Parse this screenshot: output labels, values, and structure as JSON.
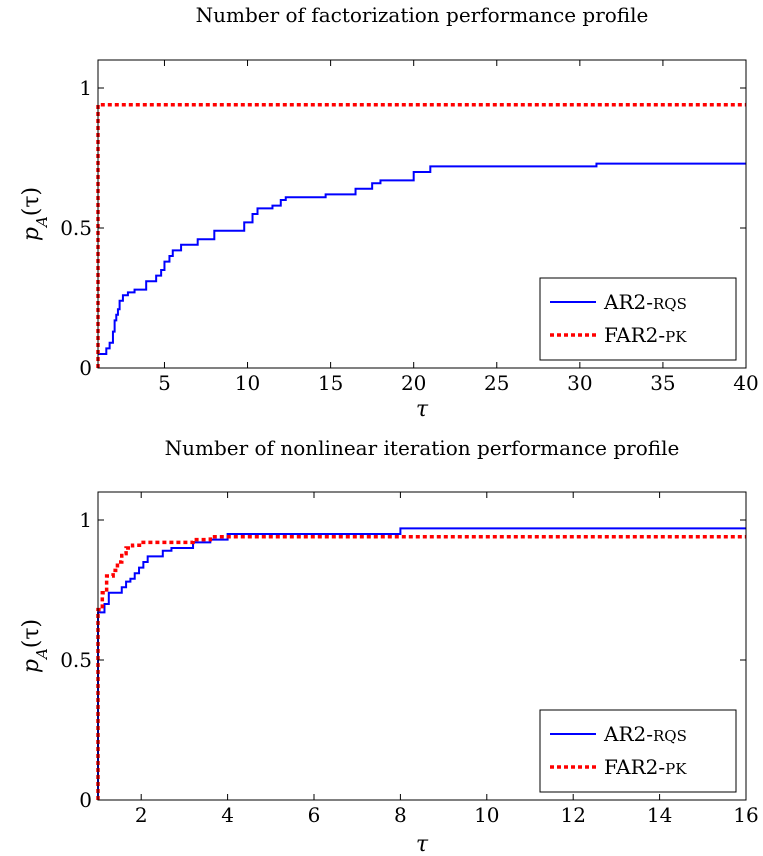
{
  "chart_data": [
    {
      "type": "line",
      "title": "Number of factorization performance profile",
      "xlabel": "τ",
      "ylabel": "p_A(τ)",
      "ylabel_main": "p",
      "ylabel_sub": "A",
      "ylabel_arg": "(τ)",
      "xlim": [
        1,
        40
      ],
      "ylim": [
        0,
        1.1
      ],
      "xticks": [
        5,
        10,
        15,
        20,
        25,
        30,
        35,
        40
      ],
      "xtick_labels": [
        "5",
        "10",
        "15",
        "20",
        "25",
        "30",
        "35",
        "40"
      ],
      "yticks": [
        0,
        0.5,
        1
      ],
      "ytick_labels": [
        "0",
        "0.5",
        "1"
      ],
      "grid": false,
      "legend_position": "bottom-right",
      "series": [
        {
          "name": "AR2-RQS",
          "name_main": "AR2-",
          "name_sc": "RQS",
          "color": "#0000ff",
          "style": "solid",
          "points": [
            [
              1,
              0.05
            ],
            [
              1.5,
              0.05
            ],
            [
              1.5,
              0.07
            ],
            [
              1.7,
              0.07
            ],
            [
              1.7,
              0.09
            ],
            [
              1.9,
              0.09
            ],
            [
              1.9,
              0.13
            ],
            [
              2.0,
              0.13
            ],
            [
              2.0,
              0.17
            ],
            [
              2.1,
              0.17
            ],
            [
              2.1,
              0.19
            ],
            [
              2.2,
              0.19
            ],
            [
              2.2,
              0.21
            ],
            [
              2.3,
              0.21
            ],
            [
              2.3,
              0.24
            ],
            [
              2.5,
              0.24
            ],
            [
              2.5,
              0.26
            ],
            [
              2.8,
              0.26
            ],
            [
              2.8,
              0.27
            ],
            [
              3.2,
              0.27
            ],
            [
              3.2,
              0.28
            ],
            [
              3.9,
              0.28
            ],
            [
              3.9,
              0.31
            ],
            [
              4.5,
              0.31
            ],
            [
              4.5,
              0.33
            ],
            [
              4.8,
              0.33
            ],
            [
              4.8,
              0.35
            ],
            [
              5.0,
              0.35
            ],
            [
              5.0,
              0.38
            ],
            [
              5.3,
              0.38
            ],
            [
              5.3,
              0.4
            ],
            [
              5.5,
              0.4
            ],
            [
              5.5,
              0.42
            ],
            [
              6.0,
              0.42
            ],
            [
              6.0,
              0.44
            ],
            [
              7.0,
              0.44
            ],
            [
              7.0,
              0.46
            ],
            [
              8.0,
              0.46
            ],
            [
              8.0,
              0.49
            ],
            [
              9.8,
              0.49
            ],
            [
              9.8,
              0.52
            ],
            [
              10.3,
              0.52
            ],
            [
              10.3,
              0.55
            ],
            [
              10.6,
              0.55
            ],
            [
              10.6,
              0.57
            ],
            [
              11.5,
              0.57
            ],
            [
              11.5,
              0.58
            ],
            [
              12.0,
              0.58
            ],
            [
              12.0,
              0.6
            ],
            [
              12.3,
              0.6
            ],
            [
              12.3,
              0.61
            ],
            [
              14.7,
              0.61
            ],
            [
              14.7,
              0.62
            ],
            [
              16.5,
              0.62
            ],
            [
              16.5,
              0.64
            ],
            [
              17.5,
              0.64
            ],
            [
              17.5,
              0.66
            ],
            [
              18.0,
              0.66
            ],
            [
              18.0,
              0.67
            ],
            [
              20.0,
              0.67
            ],
            [
              20.0,
              0.7
            ],
            [
              21.0,
              0.7
            ],
            [
              21.0,
              0.72
            ],
            [
              31.0,
              0.72
            ],
            [
              31.0,
              0.73
            ],
            [
              40,
              0.73
            ]
          ]
        },
        {
          "name": "FAR2-PK",
          "name_main": "FAR2-",
          "name_sc": "PK",
          "color": "#ff0000",
          "style": "dotted",
          "points": [
            [
              1,
              0
            ],
            [
              1,
              0.94
            ],
            [
              40,
              0.94
            ]
          ]
        }
      ]
    },
    {
      "type": "line",
      "title": "Number of nonlinear iteration performance profile",
      "xlabel": "τ",
      "ylabel": "p_A(τ)",
      "ylabel_main": "p",
      "ylabel_sub": "A",
      "ylabel_arg": "(τ)",
      "xlim": [
        1,
        16
      ],
      "ylim": [
        0,
        1.1
      ],
      "xticks": [
        2,
        4,
        6,
        8,
        10,
        12,
        14,
        16
      ],
      "xtick_labels": [
        "2",
        "4",
        "6",
        "8",
        "10",
        "12",
        "14",
        "16"
      ],
      "yticks": [
        0,
        0.5,
        1
      ],
      "ytick_labels": [
        "0",
        "0.5",
        "1"
      ],
      "grid": false,
      "legend_position": "bottom-right",
      "series": [
        {
          "name": "AR2-RQS",
          "name_main": "AR2-",
          "name_sc": "RQS",
          "color": "#0000ff",
          "style": "solid",
          "points": [
            [
              1,
              0
            ],
            [
              1,
              0.67
            ],
            [
              1.15,
              0.67
            ],
            [
              1.15,
              0.7
            ],
            [
              1.25,
              0.7
            ],
            [
              1.25,
              0.74
            ],
            [
              1.55,
              0.74
            ],
            [
              1.55,
              0.76
            ],
            [
              1.65,
              0.76
            ],
            [
              1.65,
              0.78
            ],
            [
              1.75,
              0.78
            ],
            [
              1.75,
              0.79
            ],
            [
              1.85,
              0.79
            ],
            [
              1.85,
              0.81
            ],
            [
              1.95,
              0.81
            ],
            [
              1.95,
              0.83
            ],
            [
              2.05,
              0.83
            ],
            [
              2.05,
              0.85
            ],
            [
              2.15,
              0.85
            ],
            [
              2.15,
              0.87
            ],
            [
              2.5,
              0.87
            ],
            [
              2.5,
              0.89
            ],
            [
              2.7,
              0.89
            ],
            [
              2.7,
              0.9
            ],
            [
              3.2,
              0.9
            ],
            [
              3.2,
              0.92
            ],
            [
              3.6,
              0.92
            ],
            [
              3.6,
              0.93
            ],
            [
              4.0,
              0.93
            ],
            [
              4.0,
              0.95
            ],
            [
              8.0,
              0.95
            ],
            [
              8.0,
              0.97
            ],
            [
              16,
              0.97
            ]
          ]
        },
        {
          "name": "FAR2-PK",
          "name_main": "FAR2-",
          "name_sc": "PK",
          "color": "#ff0000",
          "style": "dotted",
          "points": [
            [
              1,
              0
            ],
            [
              1,
              0.68
            ],
            [
              1.1,
              0.68
            ],
            [
              1.1,
              0.74
            ],
            [
              1.2,
              0.74
            ],
            [
              1.2,
              0.8
            ],
            [
              1.35,
              0.8
            ],
            [
              1.35,
              0.82
            ],
            [
              1.45,
              0.82
            ],
            [
              1.45,
              0.85
            ],
            [
              1.55,
              0.85
            ],
            [
              1.55,
              0.88
            ],
            [
              1.65,
              0.88
            ],
            [
              1.65,
              0.9
            ],
            [
              1.8,
              0.9
            ],
            [
              1.8,
              0.91
            ],
            [
              2.0,
              0.91
            ],
            [
              2.0,
              0.92
            ],
            [
              3.2,
              0.92
            ],
            [
              3.2,
              0.93
            ],
            [
              3.6,
              0.93
            ],
            [
              3.6,
              0.94
            ],
            [
              16,
              0.94
            ]
          ]
        }
      ]
    }
  ]
}
